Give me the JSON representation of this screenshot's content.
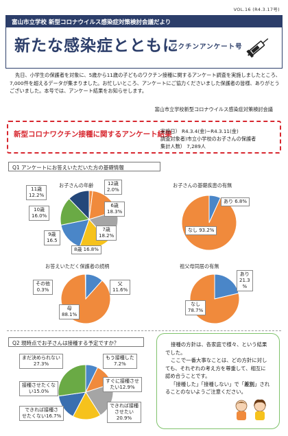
{
  "vol": "VOL.16 (R4.3.17号)",
  "banner": {
    "top": "富山市立学校 新型コロナウイルス感染症対策検討会議だより",
    "title": "新たな感染症とともに",
    "subtitle": "ワクチンアンケート号"
  },
  "intro": "先日、小学生の保護者を対象に、5歳から11歳の子どものワクチン接種に関するアンケート調査を実施しましたところ、7,000件を超えるデータが集まりました。お忙しいところ、アンケートにご協力くださいました保護者の皆様、ありがとうございました。本号では、アンケート結果をお知らせします。",
  "signature": "富山市立学校新型コロナウイルス感染症対策検討会議",
  "survey": {
    "title": "新型コロナワクチン接種に関するアンケート結果",
    "period": "実施日） R4.3.4(金)~R4.3.11(金)",
    "target": "調査対象者)市立小学校のお子さんの保護者",
    "count": "集計人数） 7,289人"
  },
  "q1": {
    "label": "Q1 アンケートにお答えいただいた方の基礎情報"
  },
  "q2": {
    "label": "Q2 現時点でお子さんは接種する予定ですか？"
  },
  "chart_data": [
    {
      "type": "pie",
      "title": "お子さんの年齢",
      "categories": [
        "12歳",
        "6歳",
        "7歳",
        "8歳",
        "9歳",
        "10歳",
        "11歳"
      ],
      "values": [
        2.0,
        18.3,
        18.2,
        16.8,
        16.5,
        16.0,
        12.2
      ],
      "labels": [
        "12歳\n2.0%",
        "6歳\n18.3%",
        "7歳\n18.2%",
        "8歳 16.8%",
        "9歳\n16.5",
        "10歳\n16.0%",
        "11歳\n12.2%"
      ],
      "colors": [
        "#f08a3c",
        "#f08a3c",
        "#a5a5a5",
        "#f6c21c",
        "#4a86c8",
        "#6aaa45",
        "#24477a"
      ]
    },
    {
      "type": "pie",
      "title": "お子さんの基礎疾患の有無",
      "categories": [
        "あり",
        "なし"
      ],
      "values": [
        6.8,
        93.2
      ],
      "labels": [
        "あり 6.8%",
        "なし 93.2%"
      ],
      "colors": [
        "#4a86c8",
        "#f08a3c"
      ]
    },
    {
      "type": "pie",
      "title": "お答えいただく保護者の続柄",
      "categories": [
        "父",
        "母",
        "その他"
      ],
      "values": [
        11.6,
        88.1,
        0.3
      ],
      "labels": [
        "父\n11.6%",
        "母\n88.1%",
        "その他\n0.3%"
      ],
      "colors": [
        "#4a86c8",
        "#f08a3c",
        "#a5a5a5"
      ]
    },
    {
      "type": "pie",
      "title": "祖父母同居の有無",
      "categories": [
        "あり",
        "なし"
      ],
      "values": [
        21.3,
        78.7
      ],
      "labels": [
        "あり\n21.3\n%",
        "なし\n78.7%"
      ],
      "colors": [
        "#4a86c8",
        "#f08a3c"
      ]
    },
    {
      "type": "pie",
      "title": "",
      "categories": [
        "もう接種した",
        "すぐに接種させたい",
        "できれば接種させたい",
        "できれば接種させたくない",
        "接種させたくない",
        "まだ決められない"
      ],
      "values": [
        7.2,
        12.9,
        20.9,
        16.7,
        15.0,
        27.3
      ],
      "labels": [
        "もう接種した\n7.2%",
        "すぐに接種させ\nたい12.9%",
        "できれば接種\nさせたい\n20.9%",
        "できれば接種さ\nせたくない16.7%",
        "接種させたくな\nい15.0%",
        "まだ決められない\n27.3%"
      ],
      "colors": [
        "#4a86c8",
        "#f08a3c",
        "#a5a5a5",
        "#f6c21c",
        "#3a6fb0",
        "#6aaa45"
      ]
    }
  ],
  "note": {
    "p1": "接種の方針は、各家庭で様々、という結果でした。",
    "p2": "ここで一番大事なことは、どの方針に対しても、それぞれの考え方を尊重して、相互に認め合うことです。",
    "p3": "「接種した」「接種しない」で「差別」されることのないようご注意ください。",
    "emph": "差別"
  },
  "icons": {
    "syringe": "syringe-icon",
    "kids": "children-icon"
  }
}
